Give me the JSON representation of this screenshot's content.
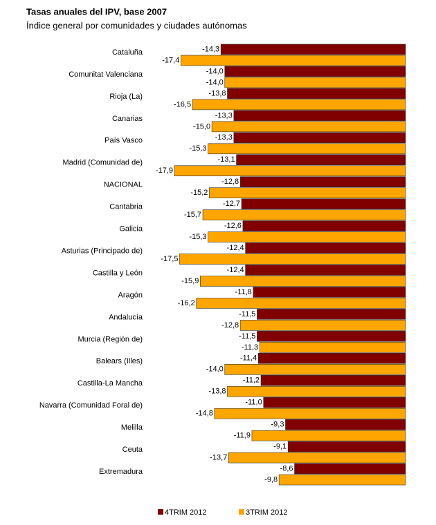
{
  "chart_data": {
    "type": "bar",
    "orientation": "horizontal",
    "title": "Tasas anuales del IPV, base 2007",
    "subtitle": "Índice general por comunidades y ciudades autónomas",
    "categories": [
      "Cataluña",
      "Comunitat Valenciana",
      "Rioja (La)",
      "Canarias",
      "País Vasco",
      "Madrid (Comunidad de)",
      "NACIONAL",
      "Cantabria",
      "Galicia",
      "Asturias (Principado de)",
      "Castilla y León",
      "Aragón",
      "Andalucía",
      "Murcia (Región de)",
      "Balears (Illes)",
      "Castilla-La Mancha",
      "Navarra (Comunidad Foral de)",
      "Melilla",
      "Ceuta",
      "Extremadura"
    ],
    "series": [
      {
        "name": "4TRIM 2012",
        "color": "#800000",
        "values": [
          -14.3,
          -14.0,
          -13.8,
          -13.3,
          -13.3,
          -13.1,
          -12.8,
          -12.7,
          -12.6,
          -12.4,
          -12.4,
          -11.8,
          -11.5,
          -11.5,
          -11.4,
          -11.2,
          -11.0,
          -9.3,
          -9.1,
          -8.6
        ],
        "value_labels": [
          "-14,3",
          "-14,0",
          "-13,8",
          "-13,3",
          "-13,3",
          "-13,1",
          "-12,8",
          "-12,7",
          "-12,6",
          "-12,4",
          "-12,4",
          "-11,8",
          "-11,5",
          "-11,5",
          "-11,4",
          "-11,2",
          "-11,0",
          "-9,3",
          "-9,1",
          "-8,6"
        ]
      },
      {
        "name": "3TRIM 2012",
        "color": "#ffa500",
        "values": [
          -17.4,
          -14.0,
          -16.5,
          -15.0,
          -15.3,
          -17.9,
          -15.2,
          -15.7,
          -15.3,
          -17.5,
          -15.9,
          -16.2,
          -12.8,
          -11.3,
          -14.0,
          -13.8,
          -14.8,
          -11.9,
          -13.7,
          -9.8
        ],
        "value_labels": [
          "-17,4",
          "-14,0",
          "-16,5",
          "-15,0",
          "-15,3",
          "-17,9",
          "-15,2",
          "-15,7",
          "-15,3",
          "-17,5",
          "-15,9",
          "-16,2",
          "-12,8",
          "-11,3",
          "-14,0",
          "-13,8",
          "-14,8",
          "-11,9",
          "-13,7",
          "-9,8"
        ]
      }
    ],
    "legend": "bottom"
  }
}
